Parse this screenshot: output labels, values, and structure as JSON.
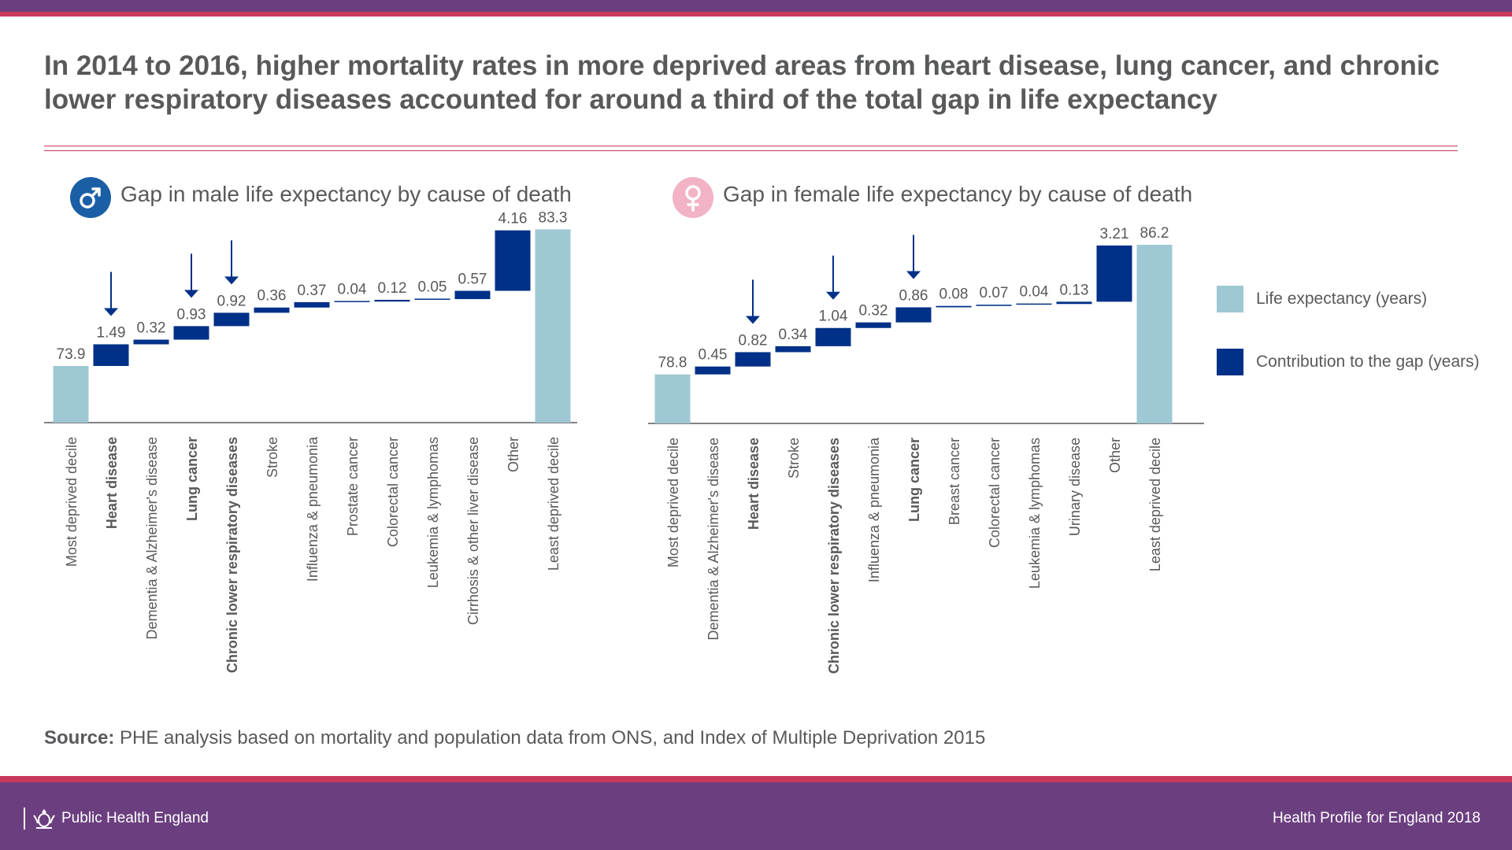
{
  "headline": "In 2014 to 2016, higher mortality rates in more deprived areas from heart disease, lung cancer, and chronic lower respiratory diseases accounted for around a third of the total gap in life expectancy",
  "male_title": "Gap in male life expectancy by cause of death",
  "female_title": "Gap in female life expectancy by cause of death",
  "icons": {
    "male": "male-symbol-icon",
    "female": "female-symbol-icon",
    "crest": "royal-crest-icon",
    "arrow": "arrow-down-icon"
  },
  "legend": {
    "life_expectancy": "Life expectancy (years)",
    "contribution": "Contribution to the gap (years)"
  },
  "source": {
    "label": "Source:",
    "text": "PHE analysis based on mortality and population data from ONS, and Index of Multiple Deprivation 2015"
  },
  "footer": {
    "org": "Public Health England",
    "publication": "Health Profile for England 2018"
  },
  "colors": {
    "life_expectancy": "#9ec8d3",
    "contribution": "#003087",
    "male_badge": "#1a5fa5",
    "female_badge": "#f2b3c5",
    "accent_line": "#c8385d",
    "banner": "#6b3f7f",
    "text": "#58595b"
  },
  "chart_data": [
    {
      "type": "waterfall",
      "title": "Gap in male life expectancy by cause of death",
      "y_range": [
        70,
        85
      ],
      "categories": [
        "Most deprived decile",
        "Heart disease",
        "Dementia & Alzheimer's disease",
        "Lung cancer",
        "Chronic lower respiratory diseases",
        "Stroke",
        "Influenza & pneumonia",
        "Prostate cancer",
        "Colorectal cancer",
        "Leukemia & lymphomas",
        "Cirrhosis & other liver disease",
        "Other",
        "Least deprived decile"
      ],
      "kinds": [
        "total",
        "contribution",
        "contribution",
        "contribution",
        "contribution",
        "contribution",
        "contribution",
        "contribution",
        "contribution",
        "contribution",
        "contribution",
        "contribution",
        "total"
      ],
      "values": [
        73.9,
        1.49,
        0.32,
        0.93,
        0.92,
        0.36,
        0.37,
        0.04,
        0.12,
        0.05,
        0.57,
        4.16,
        83.3
      ],
      "value_labels": [
        "73.9",
        "1.49",
        "0.32",
        "0.93",
        "0.92",
        "0.36",
        "0.37",
        "0.04",
        "0.12",
        "0.05",
        "0.57",
        "4.16",
        "83.3"
      ],
      "highlighted": [
        false,
        true,
        false,
        true,
        true,
        false,
        false,
        false,
        false,
        false,
        false,
        false,
        false
      ],
      "legend_position": "right",
      "grid": false
    },
    {
      "type": "waterfall",
      "title": "Gap in female life expectancy by cause of death",
      "y_range": [
        76,
        88
      ],
      "categories": [
        "Most deprived decile",
        "Dementia & Alzheimer's disease",
        "Heart disease",
        "Stroke",
        "Chronic lower respiratory diseases",
        "Influenza & pneumonia",
        "Lung cancer",
        "Breast cancer",
        "Colorectal cancer",
        "Leukemia & lymphomas",
        "Urinary disease",
        "Other",
        "Least deprived decile"
      ],
      "kinds": [
        "total",
        "contribution",
        "contribution",
        "contribution",
        "contribution",
        "contribution",
        "contribution",
        "contribution",
        "contribution",
        "contribution",
        "contribution",
        "contribution",
        "total"
      ],
      "values": [
        78.8,
        0.45,
        0.82,
        0.34,
        1.04,
        0.32,
        0.86,
        0.08,
        0.07,
        0.04,
        0.13,
        3.21,
        86.2
      ],
      "value_labels": [
        "78.8",
        "0.45",
        "0.82",
        "0.34",
        "1.04",
        "0.32",
        "0.86",
        "0.08",
        "0.07",
        "0.04",
        "0.13",
        "3.21",
        "86.2"
      ],
      "highlighted": [
        false,
        false,
        true,
        false,
        true,
        false,
        true,
        false,
        false,
        false,
        false,
        false,
        false
      ],
      "legend_position": "right",
      "grid": false
    }
  ]
}
